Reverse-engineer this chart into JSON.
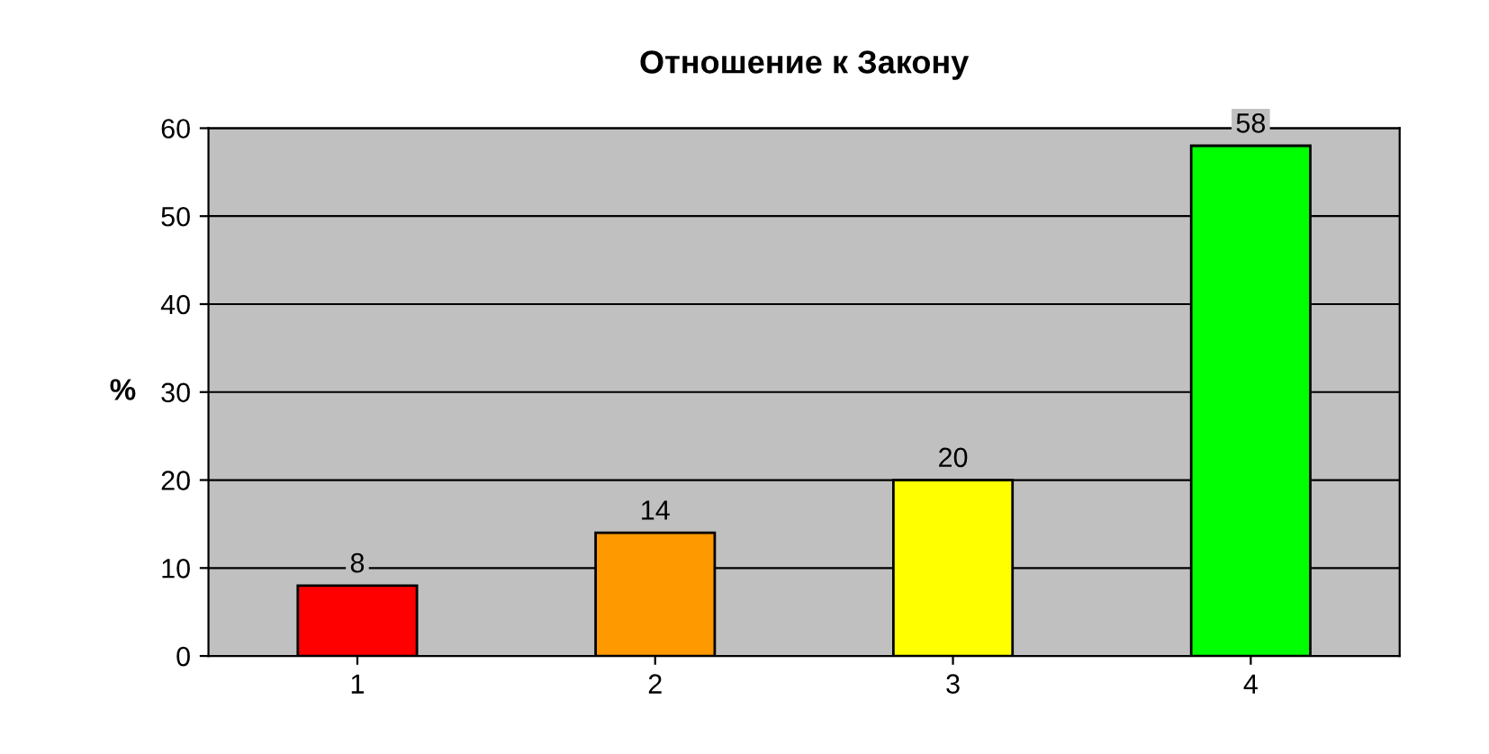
{
  "chart_data": {
    "type": "bar",
    "title": "Отношение к Закону",
    "ylabel": "%",
    "categories": [
      "1",
      "2",
      "3",
      "4"
    ],
    "values": [
      8,
      14,
      20,
      58
    ],
    "colors": [
      "#ff0000",
      "#ff9900",
      "#ffff00",
      "#00ff00"
    ],
    "ylim": [
      0,
      60
    ],
    "yticks": [
      0,
      10,
      20,
      30,
      40,
      50,
      60
    ],
    "grid": "y",
    "data_labels": true
  }
}
